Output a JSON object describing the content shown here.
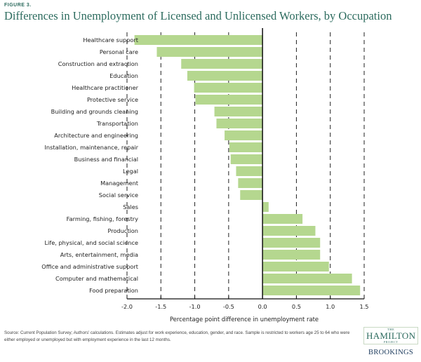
{
  "figure": {
    "label": "FIGURE 3.",
    "title": "Differences in Unemployment of Licensed and Unlicensed Workers, by Occupation"
  },
  "footer": {
    "source": "Source: Current Population Survey; Authors' calculations. Estimates adjust for work experience, education, gender, and race. Sample is restricted to workers age 25 to 64 who were either employed or unemployed but with employment experience in the last 12 months."
  },
  "logo": {
    "the": "THE",
    "hamilton": "HAMILTON",
    "project": "PROJECT",
    "brookings": "BROOKINGS"
  },
  "colors": {
    "bar": "#b5d78f",
    "title": "#2c6b5e",
    "axis": "#111111",
    "grid": "#222222"
  },
  "chart_data": {
    "type": "bar",
    "orientation": "horizontal",
    "title": "Differences in Unemployment of Licensed and Unlicensed Workers, by Occupation",
    "xlabel": "Percentage point difference in unemployment rate",
    "ylabel": "",
    "xlim": [
      -2.0,
      1.5
    ],
    "xticks": [
      -2.0,
      -1.5,
      -1.0,
      -0.5,
      0.0,
      0.5,
      1.0,
      1.5
    ],
    "xtick_labels": [
      "-2.0",
      "-1.5",
      "-1.0",
      "-0.5",
      "0.0",
      "0.5",
      "1.0",
      "1.5"
    ],
    "grid": "vertical dashed at ticks",
    "categories": [
      "Healthcare support",
      "Personal care",
      "Construction and extraction",
      "Education",
      "Healthcare practitioner",
      "Protective service",
      "Building and grounds cleaning",
      "Transportation",
      "Architecture and engineering",
      "Installation, maintenance, repair",
      "Business and financial",
      "Legal",
      "Management",
      "Social service",
      "Sales",
      "Farming, fishing, forestry",
      "Production",
      "Life, physical, and social science",
      "Arts, entertainment, media",
      "Office and administrative support",
      "Computer and mathematical",
      "Food preparation"
    ],
    "values": [
      -1.89,
      -1.56,
      -1.2,
      -1.11,
      -1.01,
      -0.99,
      -0.71,
      -0.68,
      -0.56,
      -0.49,
      -0.47,
      -0.39,
      -0.36,
      -0.33,
      0.09,
      0.59,
      0.78,
      0.85,
      0.85,
      0.98,
      1.32,
      1.44
    ]
  }
}
